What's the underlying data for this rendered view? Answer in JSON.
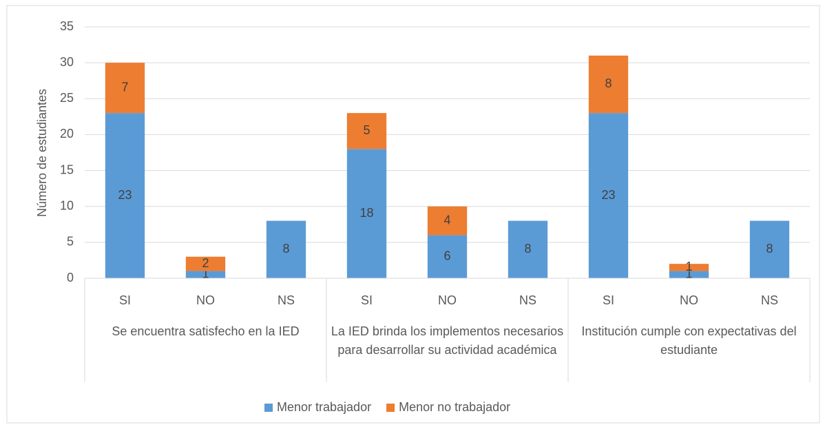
{
  "chart_data": {
    "type": "stacked_bar",
    "ylabel": "Número de estudiantes",
    "categories": [
      "SI",
      "NO",
      "NS",
      "SI",
      "NO",
      "NS",
      "SI",
      "NO",
      "NS"
    ],
    "groups": [
      "Se encuentra satisfecho en la IED",
      "La IED brinda los implementos necesarios para desarrollar su actividad académica",
      "Institución cumple con expectativas del estudiante"
    ],
    "series": [
      {
        "name": "Menor trabajador",
        "color": "#5b9bd5",
        "values": [
          23,
          1,
          8,
          18,
          6,
          8,
          23,
          1,
          8
        ]
      },
      {
        "name": "Menor no trabajador",
        "color": "#ed7d31",
        "values": [
          7,
          2,
          null,
          5,
          4,
          null,
          8,
          1,
          null
        ]
      }
    ],
    "ylim": [
      0,
      35
    ],
    "yticks": [
      0,
      5,
      10,
      15,
      20,
      25,
      30,
      35
    ],
    "grid": true,
    "legend": "bottom"
  }
}
